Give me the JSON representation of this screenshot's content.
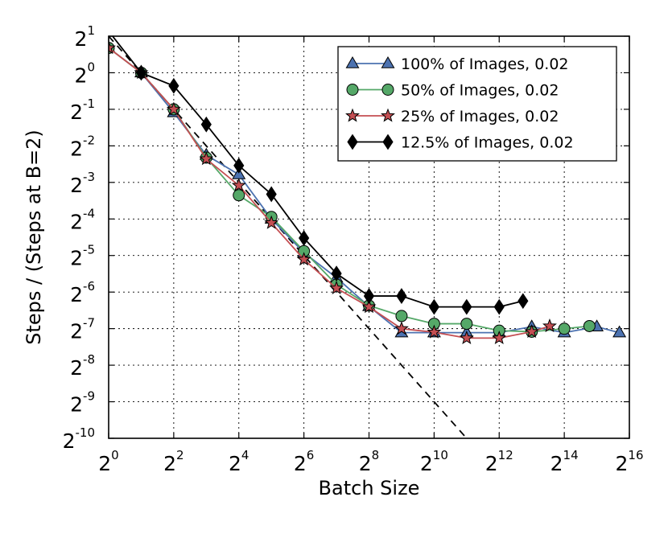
{
  "chart_data": {
    "type": "line",
    "xlabel": "Batch Size",
    "ylabel": "Steps / (Steps at B=2)",
    "x_scale": "log2",
    "y_scale": "log2",
    "xlim": [
      1,
      65536
    ],
    "ylim": [
      0.0009765625,
      2
    ],
    "x_ticks": [
      {
        "base": "2",
        "exp": "0",
        "value": 1
      },
      {
        "base": "2",
        "exp": "2",
        "value": 4
      },
      {
        "base": "2",
        "exp": "4",
        "value": 16
      },
      {
        "base": "2",
        "exp": "6",
        "value": 64
      },
      {
        "base": "2",
        "exp": "8",
        "value": 256
      },
      {
        "base": "2",
        "exp": "10",
        "value": 1024
      },
      {
        "base": "2",
        "exp": "12",
        "value": 4096
      },
      {
        "base": "2",
        "exp": "14",
        "value": 16384
      },
      {
        "base": "2",
        "exp": "16",
        "value": 65536
      }
    ],
    "y_ticks": [
      {
        "base": "2",
        "exp": "1",
        "value": 2
      },
      {
        "base": "2",
        "exp": "0",
        "value": 1
      },
      {
        "base": "2",
        "exp": "-1",
        "value": 0.5
      },
      {
        "base": "2",
        "exp": "-2",
        "value": 0.25
      },
      {
        "base": "2",
        "exp": "-3",
        "value": 0.125
      },
      {
        "base": "2",
        "exp": "-4",
        "value": 0.0625
      },
      {
        "base": "2",
        "exp": "-5",
        "value": 0.03125
      },
      {
        "base": "2",
        "exp": "-6",
        "value": 0.015625
      },
      {
        "base": "2",
        "exp": "-7",
        "value": 0.0078125
      },
      {
        "base": "2",
        "exp": "-8",
        "value": 0.00390625
      },
      {
        "base": "2",
        "exp": "-9",
        "value": 0.001953125
      },
      {
        "base": "2",
        "exp": "-10",
        "value": 0.0009765625
      }
    ],
    "grid": true,
    "legend_position": "top-right",
    "reference_line": {
      "style": "dashed",
      "color": "#000000",
      "x": [
        1,
        2048
      ],
      "y": [
        2,
        0.0009765625
      ]
    },
    "series": [
      {
        "name": "100% of Images, 0.02",
        "color": "#4c72b0",
        "marker": "triangle",
        "x": [
          1,
          2,
          4,
          8,
          16,
          32,
          64,
          128,
          256,
          512,
          1024,
          2048,
          4096,
          8192,
          16384,
          32768,
          53000
        ],
        "y": [
          1.6,
          1,
          0.47,
          0.21,
          0.145,
          0.0625,
          0.033,
          0.0205,
          0.0119,
          0.00724,
          0.00724,
          0.00724,
          0.00724,
          0.0081,
          0.00724,
          0.0081,
          0.00724
        ]
      },
      {
        "name": "50% of Images, 0.02",
        "color": "#55a868",
        "marker": "circle",
        "x": [
          1,
          2,
          4,
          8,
          16,
          32,
          64,
          128,
          256,
          512,
          1024,
          2048,
          4096,
          8192,
          16384,
          28000
        ],
        "y": [
          1.6,
          1,
          0.5,
          0.2,
          0.098,
          0.065,
          0.034,
          0.018,
          0.0121,
          0.00993,
          0.00857,
          0.00857,
          0.00752,
          0.00737,
          0.0078,
          0.0082
        ]
      },
      {
        "name": "25% of Images, 0.02",
        "color": "#c44e52",
        "marker": "star",
        "x": [
          1,
          2,
          4,
          8,
          16,
          32,
          64,
          128,
          256,
          512,
          1024,
          2048,
          4096,
          8192,
          12000
        ],
        "y": [
          1.6,
          1,
          0.5,
          0.195,
          0.118,
          0.058,
          0.029,
          0.0168,
          0.0118,
          0.0078,
          0.0073,
          0.00653,
          0.00653,
          0.00737,
          0.0082
        ]
      },
      {
        "name": "12.5% of Images, 0.02",
        "color": "#000000",
        "marker": "diamond",
        "x": [
          1,
          2,
          4,
          8,
          16,
          32,
          64,
          128,
          256,
          512,
          1024,
          2048,
          4096,
          6800
        ],
        "y": [
          2.2,
          1,
          0.78,
          0.375,
          0.172,
          0.1,
          0.0435,
          0.0222,
          0.0145,
          0.0145,
          0.0118,
          0.0118,
          0.0118,
          0.0132
        ]
      }
    ]
  }
}
